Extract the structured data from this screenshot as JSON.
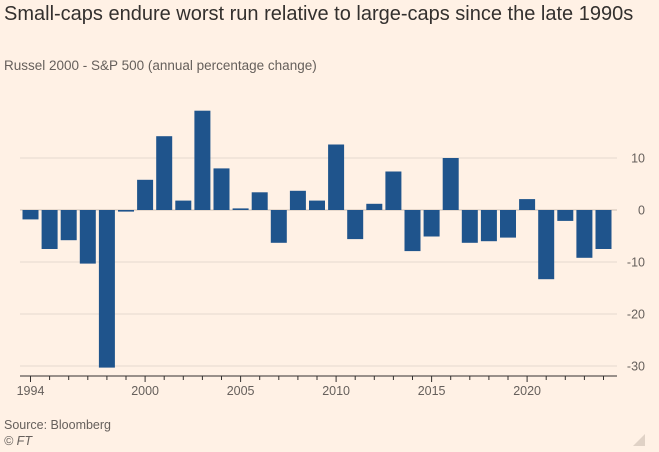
{
  "title": "Small-caps endure worst run relative to large-caps since the late 1990s",
  "subtitle": "Russel 2000 - S&P 500 (annual percentage change)",
  "source": "Source: Bloomberg",
  "credit": "© FT",
  "colors": {
    "bar": "#1F548C",
    "grid": "#E6D9CE",
    "axis": "#33302E",
    "tick_text": "#66605C"
  },
  "chart_data": {
    "type": "bar",
    "title": "Small-caps endure worst run relative to large-caps since the late 1990s",
    "subtitle": "Russel 2000 - S&P 500 (annual percentage change)",
    "xlabel": "",
    "ylabel": "",
    "x": [
      1994,
      1995,
      1996,
      1997,
      1998,
      1999,
      2000,
      2001,
      2002,
      2003,
      2004,
      2005,
      2006,
      2007,
      2008,
      2009,
      2010,
      2011,
      2012,
      2013,
      2014,
      2015,
      2016,
      2017,
      2018,
      2019,
      2020,
      2021,
      2022,
      2023,
      2024
    ],
    "values": [
      -1.8,
      -7.5,
      -5.8,
      -10.3,
      -30.3,
      -0.3,
      5.8,
      14.2,
      1.8,
      19.1,
      8.0,
      0.3,
      3.4,
      -6.3,
      3.7,
      1.8,
      12.6,
      -5.6,
      1.2,
      7.4,
      -7.9,
      -5.1,
      10.0,
      -6.3,
      -6.0,
      -5.3,
      2.1,
      -13.3,
      -2.1,
      -9.2,
      -7.5
    ],
    "xticks": [
      "1994",
      "2000",
      "2005",
      "2010",
      "2015",
      "2020"
    ],
    "yticks": [
      "10",
      "0",
      "-10",
      "-20",
      "-30"
    ],
    "ylim": [
      -30,
      19.5
    ],
    "grid": true,
    "y_axis_side": "right"
  }
}
